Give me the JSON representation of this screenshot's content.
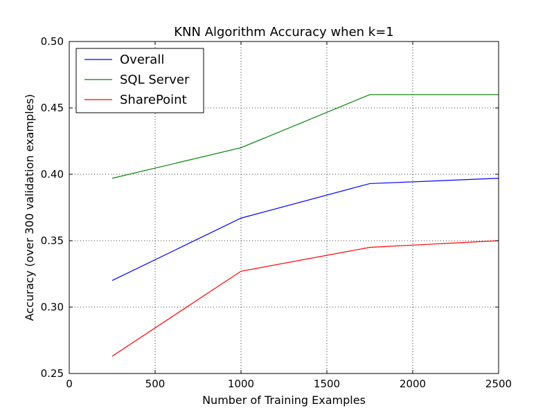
{
  "chart_data": {
    "type": "line",
    "title": "KNN Algorithm Accuracy when k=1",
    "xlabel": "Number of Training Examples",
    "ylabel": "Accuracy (over 300 validation examples)",
    "xlim": [
      0,
      2500
    ],
    "ylim": [
      0.25,
      0.5
    ],
    "xticks": [
      "0",
      "500",
      "1000",
      "1500",
      "2000",
      "2500"
    ],
    "yticks": [
      "0.25",
      "0.30",
      "0.35",
      "0.40",
      "0.45",
      "0.50"
    ],
    "grid": true,
    "legend_position": "top-left",
    "x": [
      250,
      1000,
      1750,
      2500
    ],
    "series": [
      {
        "name": "Overall",
        "color": "#0000ff",
        "values": [
          0.32,
          0.367,
          0.393,
          0.397
        ]
      },
      {
        "name": "SQL Server",
        "color": "#008000",
        "values": [
          0.397,
          0.42,
          0.46,
          0.46
        ]
      },
      {
        "name": "SharePoint",
        "color": "#ff0000",
        "values": [
          0.263,
          0.327,
          0.345,
          0.35
        ]
      }
    ]
  }
}
